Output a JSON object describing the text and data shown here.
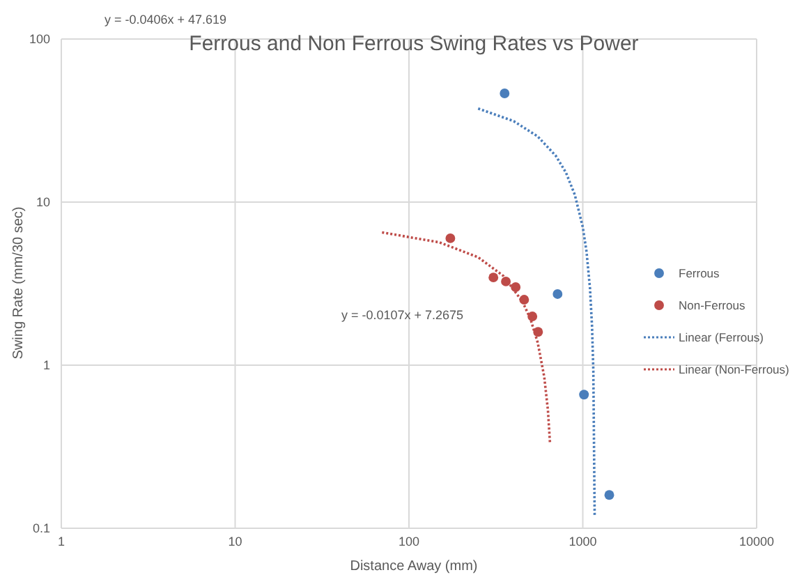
{
  "chart_data": {
    "type": "scatter",
    "title": "Ferrous and Non Ferrous Swing Rates vs Power",
    "xlabel": "Distance Away (mm)",
    "ylabel": "Swing Rate (mm/30 sec)",
    "log": "xy",
    "grid": true,
    "legend": "right",
    "marker": "circle",
    "xlim": [
      1,
      10000
    ],
    "xticks": [
      1,
      10,
      100,
      1000,
      10000
    ],
    "ylim": [
      0.1,
      100
    ],
    "yticks": [
      0.1,
      1,
      10,
      100
    ],
    "annotations": [
      "y = -0.0406x + 47.619",
      "y = -0.0107x + 7.2675"
    ],
    "series": [
      {
        "name": "Ferrous",
        "color": "#4a7ebb",
        "x": [
          355,
          716,
          1016,
          1420
        ],
        "values": [
          46.4,
          2.73,
          0.66,
          0.16
        ]
      },
      {
        "name": "Non-Ferrous",
        "color": "#be4b48",
        "x": [
          173,
          306,
          361,
          411,
          460,
          513,
          553
        ],
        "values": [
          6.0,
          3.45,
          3.26,
          3.01,
          2.52,
          1.99,
          1.6
        ]
      },
      {
        "name": "Linear (Ferrous)",
        "type": "line",
        "marker": "none",
        "line_style": "dotted",
        "color": "#4a7ebb",
        "x": [
          250,
          400,
          550,
          700,
          800,
          900,
          1000,
          1050,
          1100,
          1130,
          1150,
          1170
        ],
        "values": [
          37.47,
          31.38,
          25.29,
          19.2,
          15.17,
          11.08,
          7.02,
          4.99,
          2.96,
          1.74,
          0.93,
          0.12
        ]
      },
      {
        "name": "Linear (Non-Ferrous)",
        "type": "line",
        "marker": "none",
        "line_style": "dotted",
        "color": "#be4b48",
        "x": [
          70,
          150,
          250,
          350,
          450,
          500,
          550,
          600,
          630,
          648
        ],
        "values": [
          6.52,
          5.66,
          4.59,
          3.52,
          2.45,
          1.92,
          1.38,
          0.85,
          0.53,
          0.33
        ]
      }
    ]
  }
}
